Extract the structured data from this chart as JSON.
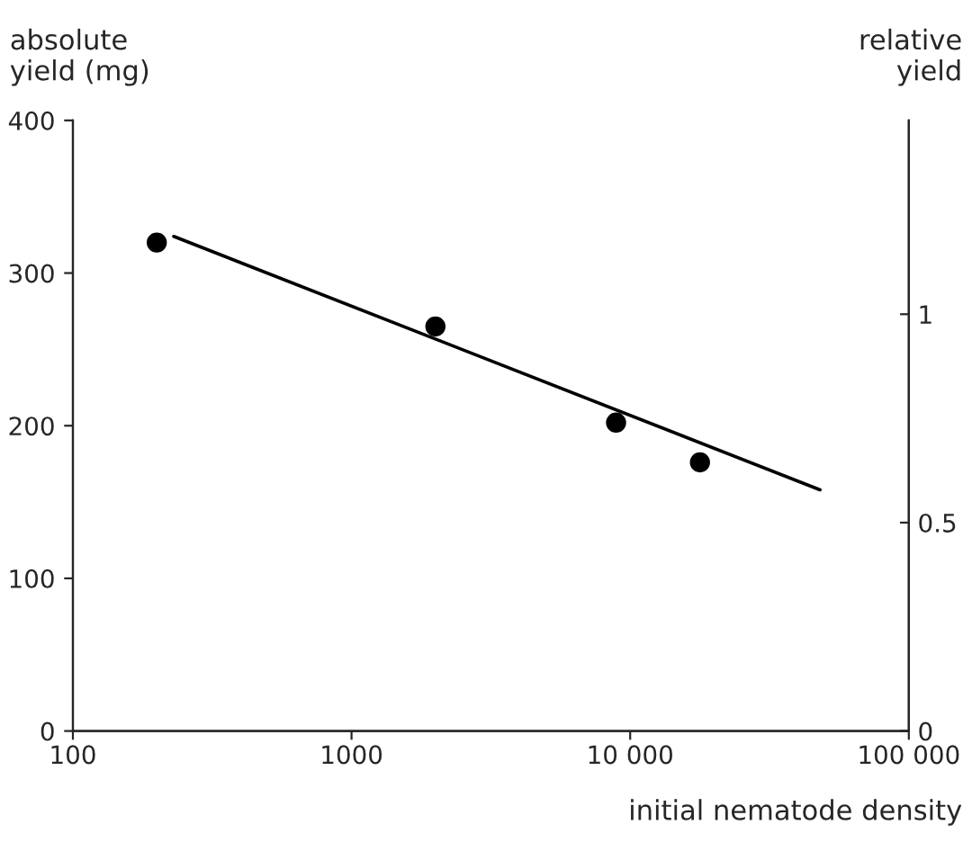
{
  "chart_data": {
    "type": "scatter",
    "xlabel": "initial nematode density",
    "ylabel": "absolute\nyield (mg)",
    "y2label": "relative\nyield",
    "log": "x",
    "xlim": [
      100,
      100000
    ],
    "xticks": [
      100,
      1000,
      {
        "value": 10000,
        "label": "10 000"
      },
      {
        "value": 100000,
        "label": "100 000"
      }
    ],
    "ylim": [
      0,
      400
    ],
    "yticks": [
      0,
      100,
      200,
      300,
      400
    ],
    "y2lim": [
      0,
      1.465
    ],
    "y2ticks": [
      0,
      0.5,
      1
    ],
    "grid": false,
    "series": [
      {
        "color": "#000000",
        "marker": "circle",
        "x": [
          200,
          2000,
          8900,
          17800
        ],
        "values": [
          320,
          265,
          202,
          176
        ]
      },
      {
        "type": "line",
        "color": "#000000",
        "marker": "none",
        "line_style": "solid",
        "x": [
          230,
          48000
        ],
        "values": [
          324,
          158
        ]
      }
    ]
  }
}
